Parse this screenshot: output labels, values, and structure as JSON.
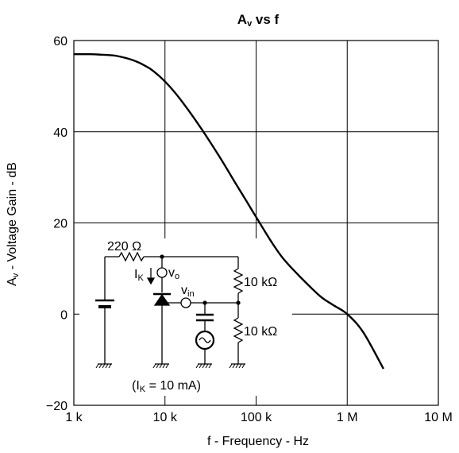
{
  "chart_data": {
    "type": "line",
    "title": {
      "main": "A",
      "sub": "v",
      "rest": " vs f"
    },
    "xlabel": "f - Frequency - Hz",
    "ylabel": {
      "main": "A",
      "sub": "v",
      "rest": " - Voltage Gain - dB"
    },
    "x_scale": "log",
    "xlim": [
      1000,
      10000000
    ],
    "ylim": [
      -20,
      60
    ],
    "x_ticks": [
      {
        "value": 1000,
        "label": "1 k"
      },
      {
        "value": 10000,
        "label": "10 k"
      },
      {
        "value": 100000,
        "label": "100 k"
      },
      {
        "value": 1000000,
        "label": "1 M"
      },
      {
        "value": 10000000,
        "label": "10 M"
      }
    ],
    "y_ticks": [
      {
        "value": 60,
        "label": "60"
      },
      {
        "value": 40,
        "label": "40"
      },
      {
        "value": 20,
        "label": "20"
      },
      {
        "value": 0,
        "label": "0"
      },
      {
        "value": -20,
        "label": "−20"
      }
    ],
    "grid": true,
    "series": [
      {
        "x": [
          1000,
          1500,
          2000,
          2500,
          3000,
          4000,
          5000,
          6000,
          7000,
          8000,
          9000,
          10000,
          12000,
          15000,
          20000,
          25000,
          30000,
          40000,
          50000,
          60000,
          70000,
          80000,
          90000,
          100000,
          150000,
          200000,
          300000,
          500000,
          700000,
          1000000,
          1500000,
          2500000
        ],
        "y": [
          57,
          57,
          56.9,
          56.8,
          56.6,
          56,
          55.3,
          54.5,
          53.7,
          52.8,
          51.9,
          51,
          49.3,
          46.9,
          43.5,
          40.7,
          38.3,
          34.4,
          31.2,
          28.6,
          26.4,
          24.5,
          22.8,
          21.3,
          15.6,
          12.1,
          8.3,
          4.0,
          2.0,
          0,
          -4,
          -12
        ]
      }
    ]
  },
  "circuit": {
    "r1_label": "220 Ω",
    "ik_main": "I",
    "ik_sub": "K",
    "vo_main": "v",
    "vo_sub": "o",
    "vin_main": "v",
    "vin_sub": "in",
    "r_top_label": "10 kΩ",
    "r_bot_label": "10 kΩ",
    "condition": {
      "pre": "(I",
      "sub": "K",
      "post": " = 10 mA)"
    }
  }
}
